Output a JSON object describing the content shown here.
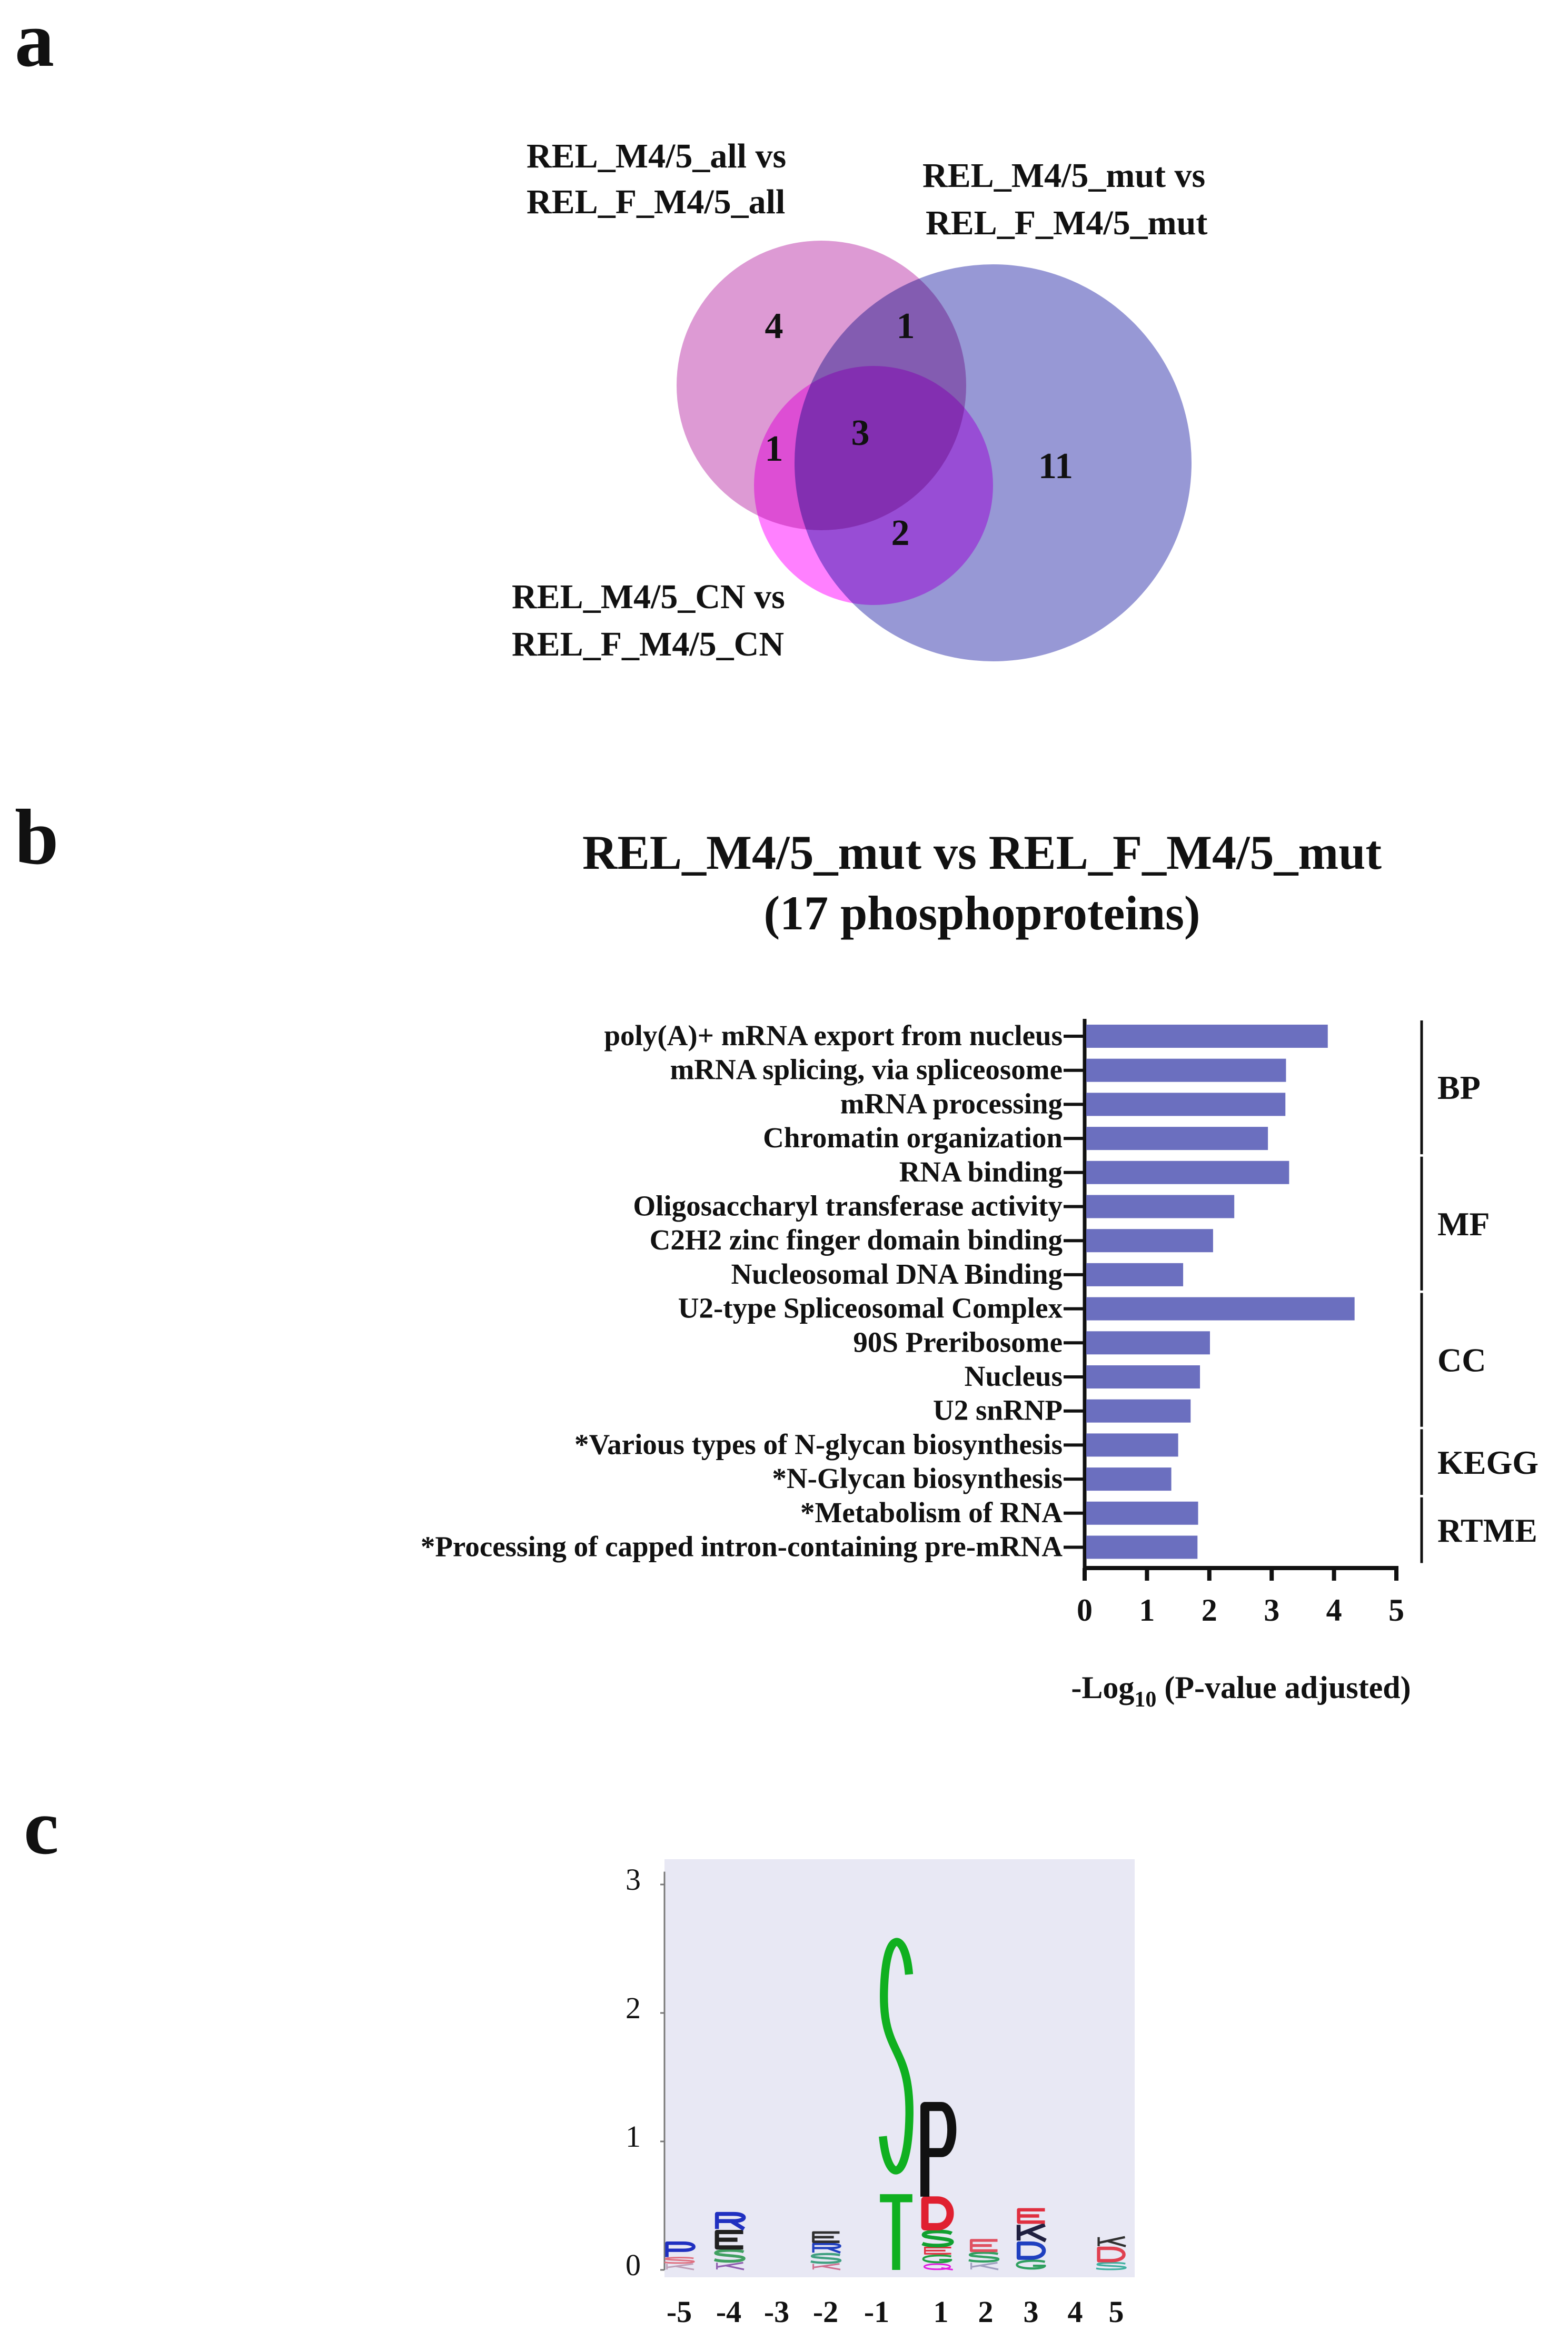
{
  "panels": {
    "a": "a",
    "b": "b",
    "c": "c"
  },
  "venn": {
    "sets": [
      {
        "line1": "REL_M4/5_all vs",
        "line2": "REL_F_M4/5_all",
        "color": "#d98fcf"
      },
      {
        "line1": "REL_M4/5_mut vs",
        "line2": "REL_F_M4/5_mut",
        "color": "#8c8dd0"
      },
      {
        "line1": "REL_M4/5_CN vs",
        "line2": "REL_F_M4/5_CN",
        "color": "#ff55ff"
      }
    ],
    "counts": {
      "all_only": "4",
      "all_mut": "1",
      "all_cn": "1",
      "all_mut_cn": "3",
      "mut_cn": "2",
      "mut_only": "11"
    }
  },
  "chart_data": [
    {
      "type": "bar",
      "orientation": "horizontal",
      "title": "REL_M4/5_mut vs REL_F_M4/5_mut",
      "subtitle": "(17 phosphoproteins)",
      "xlabel_prefix": "-Log",
      "xlabel_sub": "10",
      "xlabel_suffix": " (P-value adjusted)",
      "xlim": [
        0,
        5
      ],
      "xticks": [
        "0",
        "1",
        "2",
        "3",
        "4",
        "5"
      ],
      "bar_color": "#6b6fbf",
      "categories": [
        "poly(A)+ mRNA export from nucleus",
        "mRNA splicing, via spliceosome",
        "mRNA processing",
        "Chromatin organization",
        "RNA binding",
        "Oligosaccharyl transferase activity",
        "C2H2 zinc finger domain binding",
        "Nucleosomal DNA Binding",
        "U2-type Spliceosomal Complex",
        "90S Preribosome",
        "Nucleus",
        "U2 snRNP",
        "*Various types of N-glycan biosynthesis",
        "*N-Glycan biosynthesis",
        "*Metabolism of RNA",
        "*Processing of capped intron-containing pre-mRNA"
      ],
      "values": [
        3.9,
        3.23,
        3.22,
        2.94,
        3.28,
        2.4,
        2.06,
        1.58,
        4.33,
        2.01,
        1.85,
        1.7,
        1.5,
        1.39,
        1.82,
        1.81
      ],
      "groups": [
        {
          "label": "BP",
          "start": 0,
          "end": 3
        },
        {
          "label": "MF",
          "start": 4,
          "end": 7
        },
        {
          "label": "CC",
          "start": 8,
          "end": 11
        },
        {
          "label": "KEGG",
          "start": 12,
          "end": 13
        },
        {
          "label": "RTME",
          "start": 14,
          "end": 15
        }
      ]
    },
    {
      "type": "sequence-logo",
      "ylim": [
        0,
        3
      ],
      "yticks": [
        "0",
        "1",
        "2",
        "3"
      ],
      "positions": [
        "-5",
        "-4",
        "-3",
        "-2",
        "-1",
        "0",
        "1",
        "2",
        "3",
        "4",
        "5"
      ],
      "xticklabels": [
        "-5",
        "-4",
        "-3",
        "-2",
        "-1",
        "1",
        "2",
        "3",
        "4",
        "5"
      ],
      "stacks": [
        {
          "pos": "-5",
          "letters": [
            {
              "l": "K",
              "c": "#c0a0b8",
              "h": 0.05
            },
            {
              "l": "S",
              "c": "#e07080",
              "h": 0.05
            },
            {
              "l": "P",
              "c": "#2030c0",
              "h": 0.12
            }
          ]
        },
        {
          "pos": "-4",
          "letters": [
            {
              "l": "K",
              "c": "#9060b0",
              "h": 0.06
            },
            {
              "l": "S",
              "c": "#40a060",
              "h": 0.1
            },
            {
              "l": "E",
              "c": "#202020",
              "h": 0.15
            },
            {
              "l": "R",
              "c": "#2030c0",
              "h": 0.14
            }
          ]
        },
        {
          "pos": "-3",
          "letters": []
        },
        {
          "pos": "-2",
          "letters": [
            {
              "l": "K",
              "c": "#d07090",
              "h": 0.05
            },
            {
              "l": "S",
              "c": "#40a080",
              "h": 0.08
            },
            {
              "l": "R",
              "c": "#2040c0",
              "h": 0.08
            },
            {
              "l": "E",
              "c": "#303030",
              "h": 0.09
            }
          ]
        },
        {
          "pos": "0",
          "letters": [
            {
              "l": "T",
              "c": "#10b020",
              "h": 0.62
            },
            {
              "l": "S",
              "c": "#10b020",
              "h": 2.1
            }
          ]
        },
        {
          "pos": "1",
          "letters": [
            {
              "l": "Q",
              "c": "#e020e0",
              "h": 0.05
            },
            {
              "l": "G",
              "c": "#20a040",
              "h": 0.07
            },
            {
              "l": "E",
              "c": "#e03040",
              "h": 0.06
            },
            {
              "l": "S",
              "c": "#10a030",
              "h": 0.13
            },
            {
              "l": "D",
              "c": "#e02030",
              "h": 0.26
            },
            {
              "l": "P",
              "c": "#111111",
              "h": 0.78
            }
          ]
        },
        {
          "pos": "2",
          "letters": [
            {
              "l": "K",
              "c": "#a0a0c0",
              "h": 0.06
            },
            {
              "l": "S",
              "c": "#30a060",
              "h": 0.08
            },
            {
              "l": "E",
              "c": "#e05060",
              "h": 0.1
            }
          ]
        },
        {
          "pos": "3",
          "letters": [
            {
              "l": "G",
              "c": "#30a060",
              "h": 0.08
            },
            {
              "l": "D",
              "c": "#2040c0",
              "h": 0.14
            },
            {
              "l": "K",
              "c": "#202040",
              "h": 0.14
            },
            {
              "l": "E",
              "c": "#e03040",
              "h": 0.12
            }
          ]
        },
        {
          "pos": "4",
          "letters": []
        },
        {
          "pos": "5",
          "letters": [
            {
              "l": "S",
              "c": "#40b0a0",
              "h": 0.06
            },
            {
              "l": "D",
              "c": "#e04050",
              "h": 0.12
            },
            {
              "l": "K",
              "c": "#303030",
              "h": 0.08
            }
          ]
        }
      ]
    }
  ]
}
